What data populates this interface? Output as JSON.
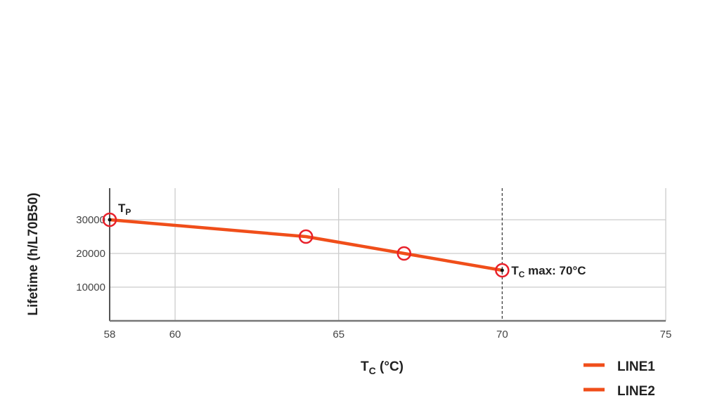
{
  "chart_data": {
    "type": "line",
    "xlabel": "T",
    "xlabel_sub": "C",
    "xlabel_unit": " (°C)",
    "ylabel": "Lifetime (h/L70B50)",
    "xlim": [
      58,
      75
    ],
    "ylim": [
      0,
      40000
    ],
    "x_ticks": [
      58,
      60,
      65,
      70,
      75
    ],
    "y_ticks": [
      10000,
      20000,
      30000
    ],
    "grid": true,
    "series": [
      {
        "x": [
          58,
          64,
          67,
          70
        ],
        "y": [
          30000,
          25000,
          20000,
          15000
        ],
        "color": "#f04e1a",
        "marker_color": "#e8202a"
      }
    ],
    "reference_line": {
      "x": 70,
      "style": "dashed"
    },
    "annotations": [
      {
        "x": 58,
        "y": 30000,
        "text": "T",
        "sub": "P",
        "suffix": ""
      },
      {
        "x": 70,
        "y": 15000,
        "text": "T",
        "sub": "C",
        "suffix": " max: 70°C"
      }
    ],
    "legend": {
      "placement": "bottom-right",
      "entries": [
        {
          "name": "LINE1",
          "color": "#f04e1a"
        },
        {
          "name": "LINE2",
          "color": "#f04e1a"
        }
      ]
    }
  }
}
